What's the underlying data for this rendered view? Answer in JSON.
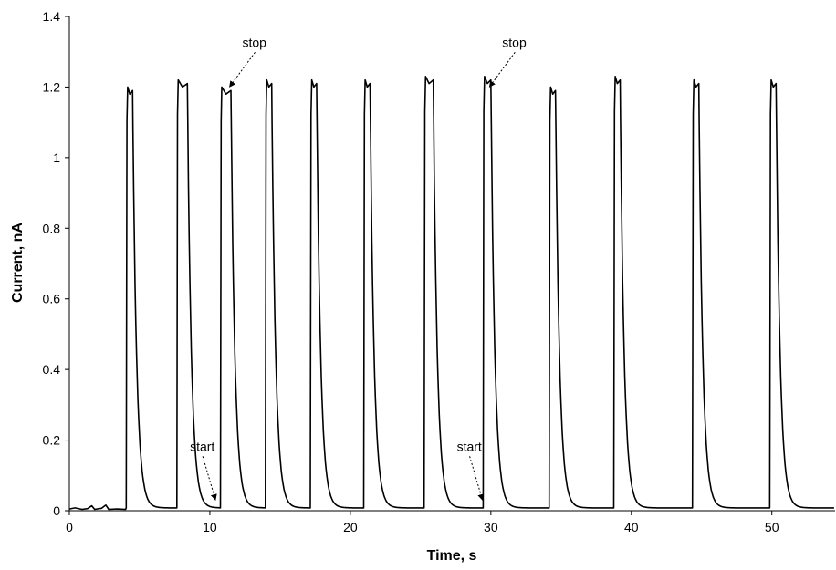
{
  "chart_data": {
    "type": "line",
    "title": "",
    "xlabel": "Time, s",
    "ylabel": "Current, nA",
    "xlim": [
      0,
      54.5
    ],
    "ylim": [
      0,
      1.4
    ],
    "x_ticks": [
      0,
      10,
      20,
      30,
      40,
      50
    ],
    "x_tick_labels": [
      "0",
      "10",
      "20",
      "30",
      "40",
      "50"
    ],
    "y_ticks": [
      0,
      0.2,
      0.4,
      0.6,
      0.8,
      1.0,
      1.2,
      1.4
    ],
    "y_tick_labels": [
      "0",
      "0.2",
      "0.4",
      "0.6",
      "0.8",
      "1",
      "1.2",
      "1.4"
    ],
    "grid": false,
    "legend": "none",
    "line_color": "#000000",
    "baseline_noise": [
      [
        0.0,
        0.005
      ],
      [
        0.4,
        0.008
      ],
      [
        0.9,
        0.004
      ],
      [
        1.3,
        0.006
      ],
      [
        1.6,
        0.014
      ],
      [
        1.8,
        0.004
      ],
      [
        2.3,
        0.007
      ],
      [
        2.6,
        0.016
      ],
      [
        2.8,
        0.004
      ],
      [
        3.4,
        0.005
      ],
      [
        4.0,
        0.004
      ]
    ],
    "peaks": [
      {
        "start": 4.1,
        "peak": 1.2,
        "plateau_end": 4.5
      },
      {
        "start": 7.7,
        "peak": 1.22,
        "plateau_end": 8.4
      },
      {
        "start": 10.8,
        "peak": 1.2,
        "plateau_end": 11.5
      },
      {
        "start": 14.0,
        "peak": 1.22,
        "plateau_end": 14.4
      },
      {
        "start": 17.2,
        "peak": 1.22,
        "plateau_end": 17.6
      },
      {
        "start": 21.0,
        "peak": 1.22,
        "plateau_end": 21.4
      },
      {
        "start": 25.3,
        "peak": 1.23,
        "plateau_end": 25.9
      },
      {
        "start": 29.5,
        "peak": 1.23,
        "plateau_end": 30.0
      },
      {
        "start": 34.2,
        "peak": 1.2,
        "plateau_end": 34.6
      },
      {
        "start": 38.8,
        "peak": 1.23,
        "plateau_end": 39.2
      },
      {
        "start": 44.4,
        "peak": 1.22,
        "plateau_end": 44.8
      },
      {
        "start": 49.9,
        "peak": 1.22,
        "plateau_end": 50.3
      }
    ],
    "annotations": [
      {
        "text": "start",
        "x": 10.4,
        "y": 0.02
      },
      {
        "text": "stop",
        "x": 11.4,
        "y": 1.19
      },
      {
        "text": "start",
        "x": 29.4,
        "y": 0.02
      },
      {
        "text": "stop",
        "x": 29.9,
        "y": 1.19
      }
    ]
  }
}
